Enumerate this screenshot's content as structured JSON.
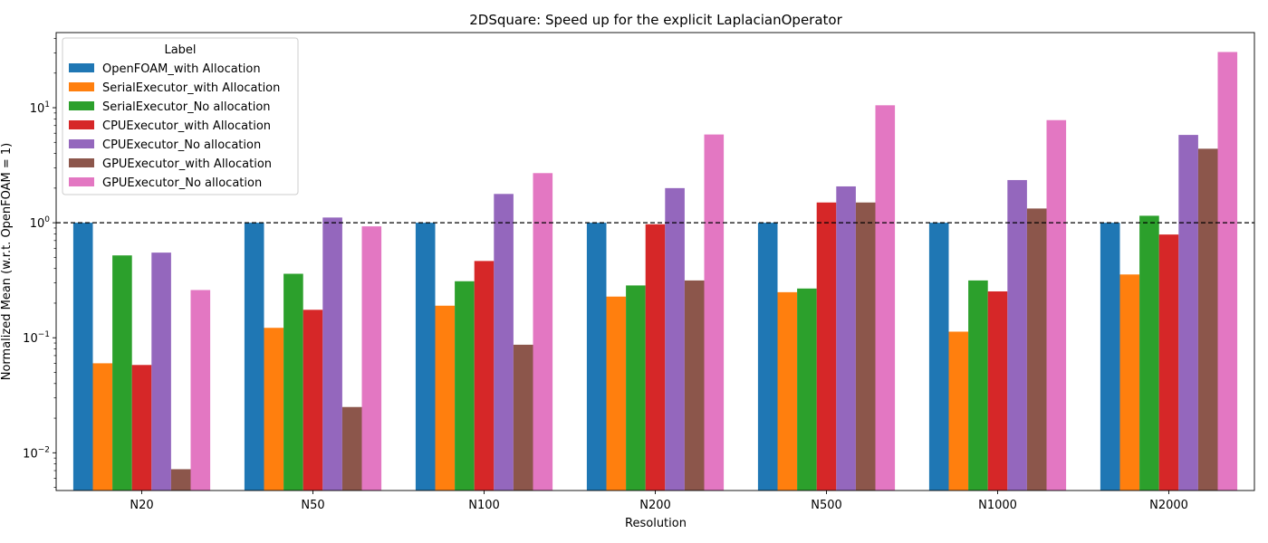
{
  "chart_data": {
    "type": "bar",
    "title": "2DSquare: Speed up for the explicit LaplacianOperator",
    "xlabel": "Resolution",
    "ylabel": "Normalized Mean (w.r.t. OpenFOAM = 1)",
    "yscale": "log",
    "ylim": [
      0.0047,
      45
    ],
    "yticks": [
      {
        "value": 0.01,
        "base": "10",
        "exp": "−2"
      },
      {
        "value": 0.1,
        "base": "10",
        "exp": "−1"
      },
      {
        "value": 1,
        "base": "10",
        "exp": "0"
      },
      {
        "value": 10,
        "base": "10",
        "exp": "1"
      }
    ],
    "reference_line": 1,
    "categories": [
      "N20",
      "N50",
      "N100",
      "N200",
      "N500",
      "N1000",
      "N2000"
    ],
    "legend": {
      "title": "Label",
      "position": "top-left"
    },
    "series": [
      {
        "name": "OpenFOAM_with Allocation",
        "color": "#1f77b4",
        "values": [
          1,
          1,
          1,
          1,
          1,
          1,
          1
        ]
      },
      {
        "name": "SerialExecutor_with Allocation",
        "color": "#ff7f0e",
        "values": [
          0.06,
          0.122,
          0.19,
          0.228,
          0.249,
          0.113,
          0.355
        ]
      },
      {
        "name": "SerialExecutor_No allocation",
        "color": "#2ca02c",
        "values": [
          0.52,
          0.36,
          0.31,
          0.285,
          0.268,
          0.315,
          1.15
        ]
      },
      {
        "name": "CPUExecutor_with Allocation",
        "color": "#d62728",
        "values": [
          0.058,
          0.175,
          0.465,
          0.97,
          1.5,
          0.253,
          0.79
        ]
      },
      {
        "name": "CPUExecutor_No allocation",
        "color": "#9467bd",
        "values": [
          0.55,
          1.11,
          1.78,
          2.0,
          2.07,
          2.35,
          5.8
        ]
      },
      {
        "name": "GPUExecutor_with Allocation",
        "color": "#8c564b",
        "values": [
          0.0072,
          0.025,
          0.087,
          0.315,
          1.5,
          1.33,
          4.4
        ]
      },
      {
        "name": "GPUExecutor_No allocation",
        "color": "#e377c2",
        "values": [
          0.26,
          0.93,
          2.7,
          5.85,
          10.5,
          7.8,
          30.5
        ]
      }
    ]
  }
}
